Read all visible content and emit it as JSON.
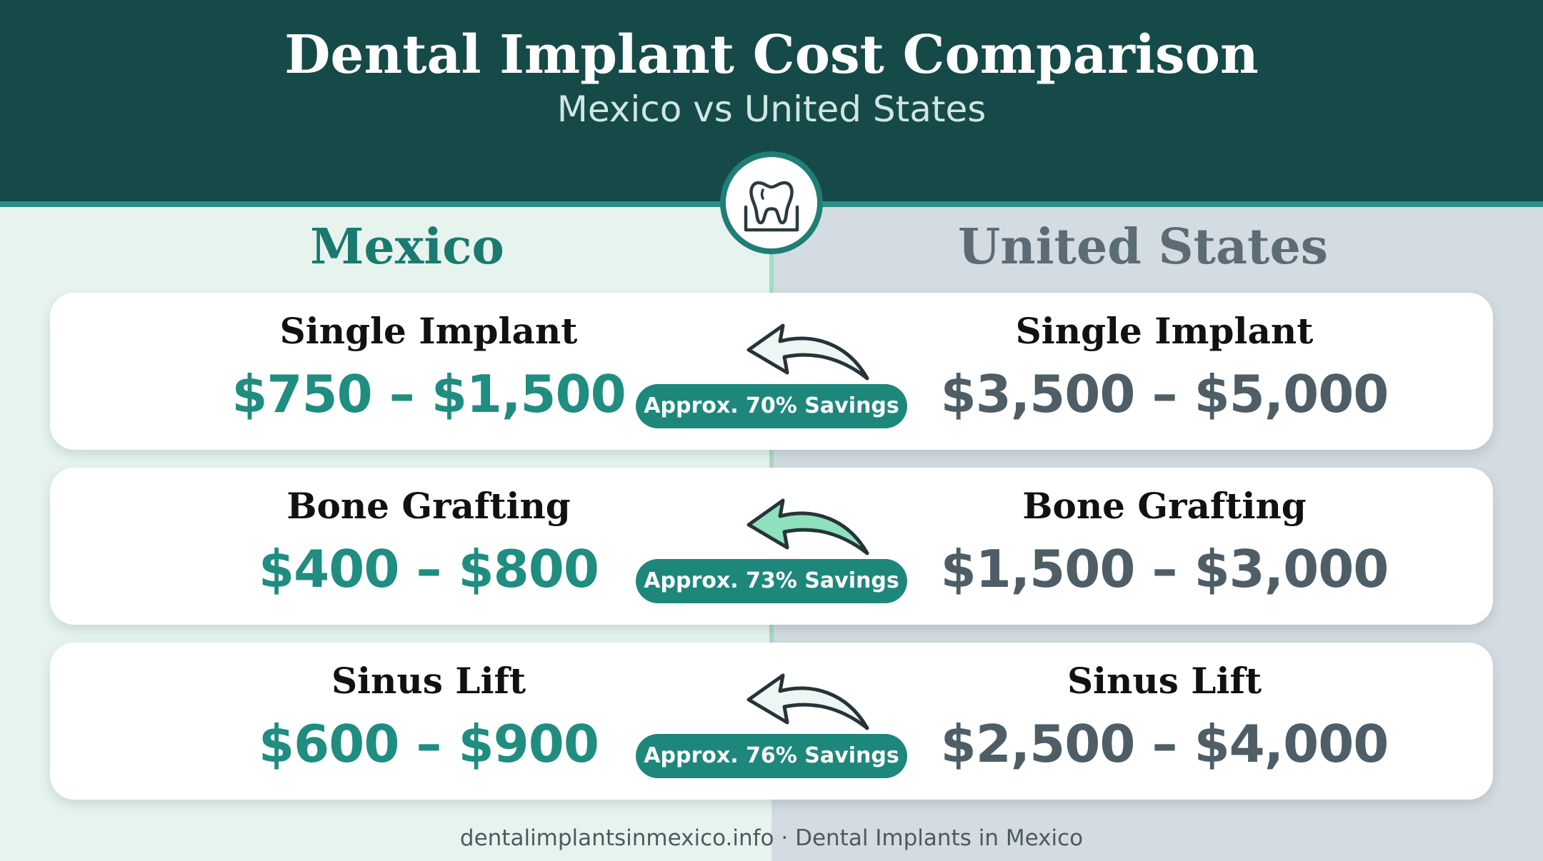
{
  "header": {
    "title": "Dental Implant Cost Comparison",
    "subtitle": "Mexico vs United States"
  },
  "columns": {
    "left": "Mexico",
    "right": "United States"
  },
  "icons": {
    "badge": "tooth-icon",
    "arrow": "curved-arrow-left-icon"
  },
  "rows": [
    {
      "procedure": "Single Implant",
      "mexico_price": "$750 – $1,500",
      "us_price": "$3,500 – $5,000",
      "savings": "Approx. 70% Savings"
    },
    {
      "procedure": "Bone Grafting",
      "mexico_price": "$400 – $800",
      "us_price": "$1,500 – $3,000",
      "savings": "Approx. 73% Savings"
    },
    {
      "procedure": "Sinus Lift",
      "mexico_price": "$600 – $900",
      "us_price": "$2,500 – $4,000",
      "savings": "Approx. 76% Savings"
    }
  ],
  "footer": "dentalimplantsinmexico.info · Dental Implants in Mexico",
  "colors": {
    "header_bg": "#164a48",
    "accent_teal": "#1e877c",
    "mexico_bg": "#e7f4ee",
    "us_bg": "#d3dce2",
    "us_text": "#4f5d66"
  }
}
